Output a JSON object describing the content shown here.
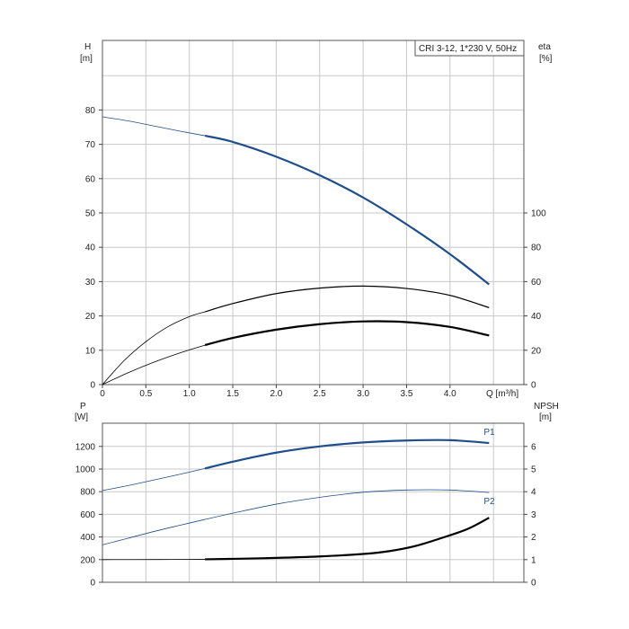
{
  "chart_data": [
    {
      "name": "pump-performance",
      "type": "line",
      "title": "CRI 3-12, 1*230 V, 50Hz",
      "xlabel": "Q [m³/h]",
      "ylabel_left_name": "H",
      "ylabel_left_unit": "[m]",
      "ylabel_right_name": "eta",
      "ylabel_right_unit": "[%]",
      "xlim": [
        0,
        4.85
      ],
      "ylim_left": [
        0,
        100
      ],
      "ylim_right": [
        0,
        200
      ],
      "xticks": [
        "0",
        "0.5",
        "1.0",
        "1.5",
        "2.0",
        "2.5",
        "3.0",
        "3.5",
        "4.0"
      ],
      "yticks_left": [
        "0",
        "10",
        "20",
        "30",
        "40",
        "50",
        "60",
        "70",
        "80"
      ],
      "yticks_right": [
        "0",
        "20",
        "40",
        "60",
        "80",
        "100"
      ],
      "grid": true,
      "series": [
        {
          "name": "H",
          "axis": "left",
          "color": "#1f4e8c",
          "thin": [
            [
              0,
              78
            ],
            [
              0.3,
              76.8
            ],
            [
              0.6,
              75.3
            ],
            [
              0.9,
              73.8
            ],
            [
              1.18,
              72.5
            ]
          ],
          "thick": [
            [
              1.18,
              72.5
            ],
            [
              1.5,
              70.7
            ],
            [
              2.0,
              66.4
            ],
            [
              2.5,
              61.0
            ],
            [
              3.0,
              54.5
            ],
            [
              3.5,
              46.7
            ],
            [
              4.0,
              38.0
            ],
            [
              4.45,
              29.2
            ]
          ]
        },
        {
          "name": "eta-upper",
          "axis": "left",
          "color": "#000000",
          "thin": [
            [
              0,
              0
            ],
            [
              0.25,
              7
            ],
            [
              0.5,
              12.5
            ],
            [
              0.75,
              16.8
            ],
            [
              1.0,
              19.8
            ],
            [
              1.18,
              21.2
            ]
          ],
          "thick": [
            [
              1.18,
              21.2
            ],
            [
              1.5,
              23.6
            ],
            [
              2.0,
              26.5
            ],
            [
              2.5,
              28.1
            ],
            [
              3.0,
              28.7
            ],
            [
              3.5,
              28.0
            ],
            [
              4.0,
              26.0
            ],
            [
              4.45,
              22.4
            ]
          ],
          "thick_width": 1.2
        },
        {
          "name": "eta",
          "axis": "left",
          "color": "#000000",
          "thin": [
            [
              0,
              0
            ],
            [
              0.3,
              3.5
            ],
            [
              0.6,
              6.6
            ],
            [
              0.9,
              9.3
            ],
            [
              1.18,
              11.5
            ]
          ],
          "thick": [
            [
              1.18,
              11.5
            ],
            [
              1.5,
              13.6
            ],
            [
              2.0,
              16.0
            ],
            [
              2.5,
              17.6
            ],
            [
              3.0,
              18.4
            ],
            [
              3.5,
              18.2
            ],
            [
              4.0,
              16.8
            ],
            [
              4.45,
              14.3
            ]
          ]
        }
      ]
    },
    {
      "name": "power-npsh",
      "type": "line",
      "xlim": [
        0,
        4.85
      ],
      "ylim_left": [
        0,
        1400
      ],
      "ylim_right": [
        0,
        7
      ],
      "ylabel_left_name": "P",
      "ylabel_left_unit": "[W]",
      "ylabel_right_name": "NPSH",
      "ylabel_right_unit": "[m]",
      "yticks_left": [
        "0",
        "200",
        "400",
        "600",
        "800",
        "1000",
        "1200"
      ],
      "yticks_right": [
        "0",
        "1",
        "2",
        "3",
        "4",
        "5",
        "6"
      ],
      "grid": true,
      "series": [
        {
          "name": "P1",
          "axis": "left",
          "color": "#1f4e8c",
          "thin": [
            [
              0,
              810
            ],
            [
              0.3,
              855
            ],
            [
              0.6,
              905
            ],
            [
              0.9,
              955
            ],
            [
              1.18,
              1005
            ]
          ],
          "thick": [
            [
              1.18,
              1005
            ],
            [
              1.5,
              1065
            ],
            [
              2.0,
              1145
            ],
            [
              2.5,
              1200
            ],
            [
              3.0,
              1235
            ],
            [
              3.5,
              1252
            ],
            [
              4.0,
              1255
            ],
            [
              4.45,
              1230
            ]
          ],
          "label": "P1"
        },
        {
          "name": "P2",
          "axis": "left",
          "color": "#1f4e8c",
          "thin": [
            [
              0,
              330
            ],
            [
              0.3,
              390
            ],
            [
              0.6,
              450
            ],
            [
              0.9,
              505
            ],
            [
              1.18,
              555
            ]
          ],
          "thin_tail": [
            [
              1.18,
              555
            ],
            [
              1.5,
              610
            ],
            [
              2.0,
              690
            ],
            [
              2.5,
              750
            ],
            [
              3.0,
              795
            ],
            [
              3.5,
              815
            ],
            [
              4.0,
              815
            ],
            [
              4.45,
              793
            ]
          ],
          "label": "P2"
        },
        {
          "name": "NPSH",
          "axis": "left",
          "color": "#000000",
          "thin": [
            [
              0,
              200
            ],
            [
              0.6,
              201
            ],
            [
              1.18,
              203
            ]
          ],
          "thick": [
            [
              1.18,
              203
            ],
            [
              1.5,
              207
            ],
            [
              2.0,
              215
            ],
            [
              2.5,
              228
            ],
            [
              3.0,
              250
            ],
            [
              3.3,
              275
            ],
            [
              3.6,
              320
            ],
            [
              3.9,
              390
            ],
            [
              4.2,
              470
            ],
            [
              4.45,
              570
            ]
          ]
        }
      ]
    }
  ]
}
